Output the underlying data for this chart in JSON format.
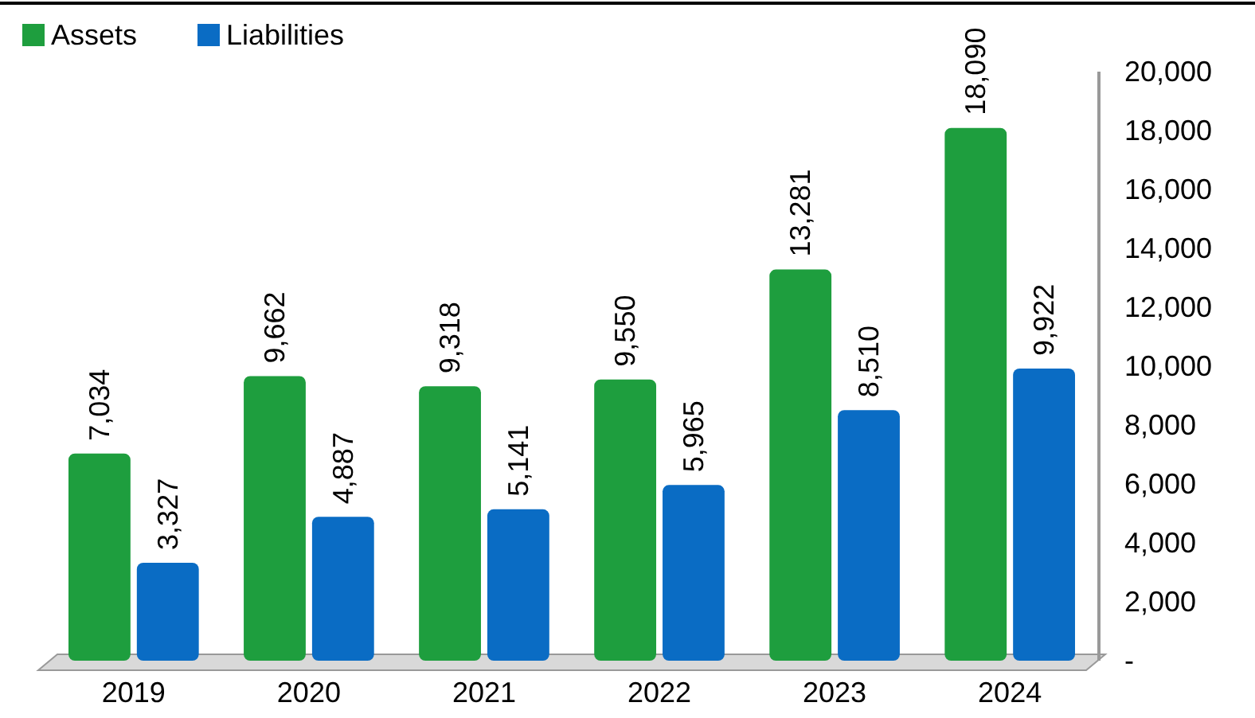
{
  "chart_data": {
    "type": "bar",
    "categories": [
      "2019",
      "2020",
      "2021",
      "2022",
      "2023",
      "2024"
    ],
    "series": [
      {
        "name": "Assets",
        "color": "#1e9e3e",
        "values": [
          7034,
          9662,
          9318,
          9550,
          13281,
          18090
        ],
        "value_labels": [
          "7,034",
          "9,662",
          "9,318",
          "9,550",
          "13,281",
          "18,090"
        ]
      },
      {
        "name": "Liabilities",
        "color": "#0a6cc4",
        "values": [
          3327,
          4887,
          5141,
          5965,
          8510,
          9922
        ],
        "value_labels": [
          "3,327",
          "4,887",
          "5,141",
          "5,965",
          "8,510",
          "9,922"
        ]
      }
    ],
    "ylim": [
      0,
      20000
    ],
    "yticks": [
      {
        "value": 0,
        "label": "-"
      },
      {
        "value": 2000,
        "label": "2,000"
      },
      {
        "value": 4000,
        "label": "4,000"
      },
      {
        "value": 6000,
        "label": "6,000"
      },
      {
        "value": 8000,
        "label": "8,000"
      },
      {
        "value": 10000,
        "label": "10,000"
      },
      {
        "value": 12000,
        "label": "12,000"
      },
      {
        "value": 14000,
        "label": "14,000"
      },
      {
        "value": 16000,
        "label": "16,000"
      },
      {
        "value": 18000,
        "label": "18,000"
      },
      {
        "value": 20000,
        "label": "20,000"
      }
    ],
    "grid": false,
    "legend": "top left"
  }
}
